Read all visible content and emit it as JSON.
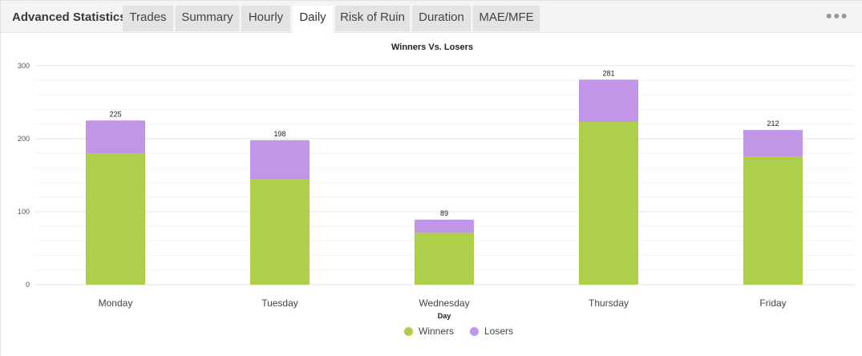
{
  "header": {
    "title": "Advanced Statistics",
    "tabs": [
      {
        "label": "Trades",
        "active": false
      },
      {
        "label": "Summary",
        "active": false
      },
      {
        "label": "Hourly",
        "active": false
      },
      {
        "label": "Daily",
        "active": true
      },
      {
        "label": "Risk of Ruin",
        "active": false
      },
      {
        "label": "Duration",
        "active": false
      },
      {
        "label": "MAE/MFE",
        "active": false
      }
    ],
    "more_icon": "more-dots-icon"
  },
  "colors": {
    "winners": "#aecf4a",
    "losers": "#c196e6"
  },
  "chart_data": {
    "type": "bar",
    "stacked": true,
    "title": "Winners Vs. Losers",
    "xlabel": "Day",
    "ylabel": "",
    "ylim": [
      0,
      300
    ],
    "yticks": [
      0,
      100,
      200,
      300
    ],
    "grid": true,
    "legend_position": "bottom-center",
    "categories": [
      "Monday",
      "Tuesday",
      "Wednesday",
      "Thursday",
      "Friday"
    ],
    "series": [
      {
        "name": "Winners",
        "values": [
          180,
          145,
          71,
          223,
          175
        ]
      },
      {
        "name": "Losers",
        "values": [
          45,
          53,
          18,
          58,
          37
        ]
      }
    ],
    "totals": [
      225,
      198,
      89,
      281,
      212
    ]
  }
}
